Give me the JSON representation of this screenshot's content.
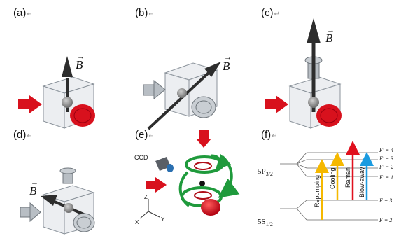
{
  "panels": {
    "a": {
      "label": "(a)",
      "mark": "↵",
      "field": "B"
    },
    "b": {
      "label": "(b)",
      "mark": "↵",
      "field": "B"
    },
    "c": {
      "label": "(c)",
      "mark": "↵",
      "field": "B"
    },
    "d": {
      "label": "(d)",
      "mark": "↵",
      "field": "B"
    },
    "e": {
      "label": "(e)",
      "mark": "↵",
      "camera": "CCD",
      "axes": {
        "z": "Z",
        "x": "X",
        "y": "Y"
      }
    },
    "f": {
      "label": "(f)",
      "mark": "↵"
    }
  },
  "levels": {
    "excited": {
      "main": "5P",
      "sub": "3/2"
    },
    "ground": {
      "main": "5S",
      "sub": "1/2"
    },
    "hyperfine": [
      "F′ = 4",
      "F′ = 3",
      "F′ = 2",
      "F′ = 1",
      "F = 3",
      "F = 2"
    ]
  },
  "transitions": [
    {
      "label": "Repumping",
      "color": "#f5b800"
    },
    {
      "label": "Cooling",
      "color": "#f5b800"
    },
    {
      "label": "Raman",
      "color": "#e0101e"
    },
    {
      "label": "Blow-away",
      "color": "#1a9be0"
    }
  ],
  "colors": {
    "beam_red": "#d8111d",
    "coil_green": "#1f9a3c",
    "cube": "#cfd5db",
    "arrow": "#333333"
  }
}
